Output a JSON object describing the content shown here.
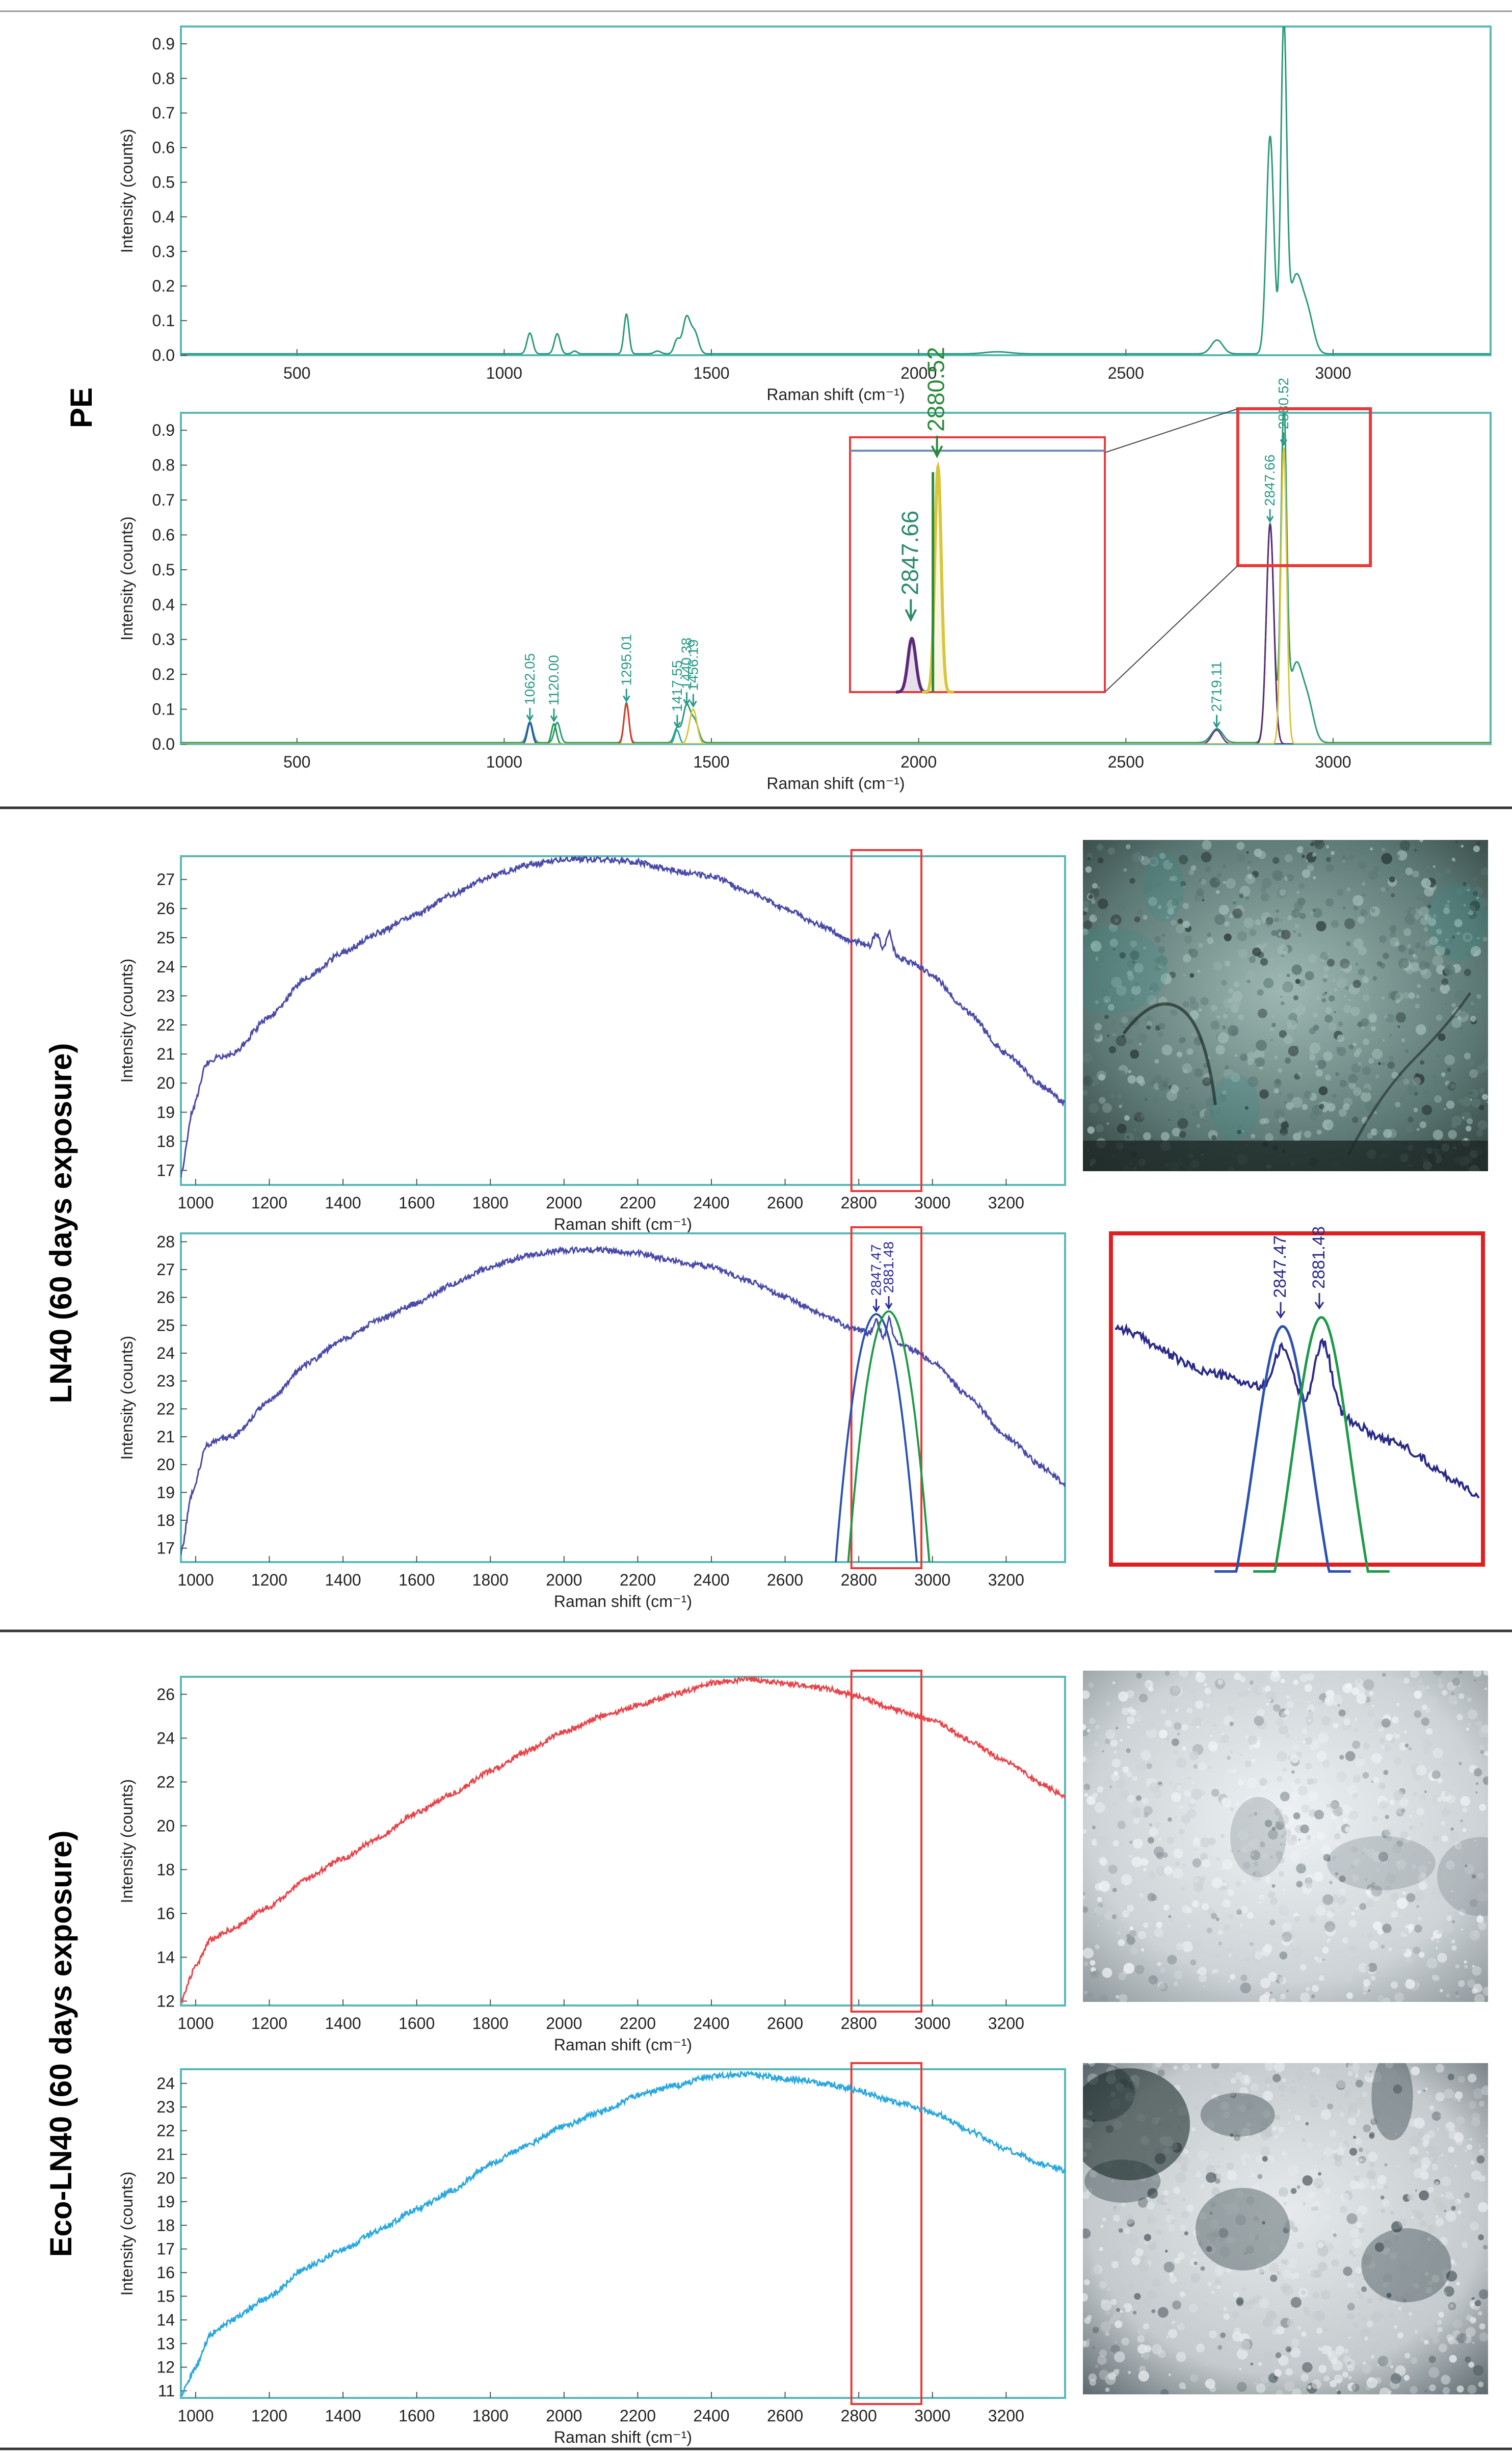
{
  "colors": {
    "frame": "#5ab8b8",
    "highlight": "#e83a3a",
    "pe_spectrum": "#2a9a78",
    "peak_blue": "#2c52b0",
    "peak_green": "#1e9a48",
    "peak_red": "#e03b2b",
    "peak_yellow": "#d8c63c",
    "peak_purple": "#5e2a78",
    "ln40": "#4a4aa8",
    "eco_red": "#e8444a",
    "eco_cyan": "#2aa8de"
  },
  "sections": {
    "pe": "PE",
    "ln40": "LN40 (60 days exposure)",
    "eco": "Eco-LN40 (60 days exposure)"
  },
  "axes": {
    "ylabel": "Intensity (counts)",
    "xlabel": "Raman shift (cm⁻¹)"
  },
  "chart_data": [
    {
      "id": "pe_top",
      "type": "line",
      "xlim": [
        220,
        3380
      ],
      "ylim": [
        0,
        0.95
      ],
      "xticks": [
        500,
        1000,
        1500,
        2000,
        2500,
        3000
      ],
      "yticks": [
        0.0,
        0.1,
        0.2,
        0.3,
        0.4,
        0.5,
        0.6,
        0.7,
        0.8,
        0.9
      ],
      "tick_decimals": 1,
      "xlabel": "Raman shift (cm⁻¹)",
      "ylabel": "Intensity (counts)",
      "grid": false,
      "series": [
        {
          "color": "#2a9a78",
          "baseline": 0.004,
          "peaks": [
            [
              1062,
              0.06,
              7
            ],
            [
              1128,
              0.058,
              7
            ],
            [
              1170,
              0.008,
              6
            ],
            [
              1295,
              0.115,
              6
            ],
            [
              1370,
              0.008,
              8
            ],
            [
              1417,
              0.04,
              7
            ],
            [
              1440,
              0.105,
              9
            ],
            [
              1460,
              0.06,
              9
            ],
            [
              2190,
              0.006,
              30
            ],
            [
              2720,
              0.04,
              14
            ],
            [
              2848,
              0.63,
              9
            ],
            [
              2881,
              0.93,
              7
            ],
            [
              2910,
              0.22,
              16
            ],
            [
              2940,
              0.1,
              14
            ]
          ]
        }
      ]
    },
    {
      "id": "pe_bottom",
      "type": "line",
      "xlim": [
        220,
        3380
      ],
      "ylim": [
        0,
        0.95
      ],
      "xticks": [
        500,
        1000,
        1500,
        2000,
        2500,
        3000
      ],
      "yticks": [
        0.0,
        0.1,
        0.2,
        0.3,
        0.4,
        0.5,
        0.6,
        0.7,
        0.8,
        0.9
      ],
      "tick_decimals": 1,
      "xlabel": "Raman shift (cm⁻¹)",
      "ylabel": "Intensity (counts)",
      "grid": false,
      "series": [
        {
          "color": "#2a9a78",
          "baseline": 0.004,
          "peaks": [
            [
              1062,
              0.06,
              7
            ],
            [
              1128,
              0.058,
              7
            ],
            [
              1295,
              0.115,
              6
            ],
            [
              1417,
              0.04,
              7
            ],
            [
              1440,
              0.105,
              9
            ],
            [
              1460,
              0.06,
              9
            ],
            [
              2720,
              0.04,
              14
            ],
            [
              2848,
              0.63,
              9
            ],
            [
              2881,
              0.93,
              7
            ],
            [
              2910,
              0.22,
              16
            ],
            [
              2940,
              0.1,
              14
            ]
          ]
        },
        {
          "color": "#2c52b0",
          "baseline": 0,
          "peaks": [
            [
              1062,
              0.06,
              6
            ]
          ]
        },
        {
          "color": "#1e9a48",
          "baseline": 0,
          "peaks": [
            [
              1120,
              0.058,
              6
            ]
          ]
        },
        {
          "color": "#e03b2b",
          "baseline": 0,
          "peaks": [
            [
              1295,
              0.115,
              6
            ]
          ]
        },
        {
          "color": "#2aa8a8",
          "baseline": 0,
          "peaks": [
            [
              1417,
              0.04,
              6
            ]
          ]
        },
        {
          "color": "#d8c63c",
          "baseline": 0,
          "peaks": [
            [
              1456,
              0.1,
              9
            ]
          ]
        },
        {
          "color": "#6a3a90",
          "baseline": 0,
          "peaks": [
            [
              2719,
              0.04,
              12
            ]
          ]
        },
        {
          "color": "#5e2a78",
          "baseline": 0,
          "peaks": [
            [
              2848,
              0.63,
              9
            ]
          ]
        },
        {
          "color": "#d8c63c",
          "baseline": 0,
          "peaks": [
            [
              2881,
              0.85,
              7
            ]
          ]
        }
      ],
      "annotations": [
        {
          "x": 1062.05,
          "y": 0.06,
          "text": "1062.05",
          "color": "#2a9a88"
        },
        {
          "x": 1120.0,
          "y": 0.058,
          "text": "1120.00",
          "color": "#2a9a88"
        },
        {
          "x": 1295.01,
          "y": 0.115,
          "text": "1295.01",
          "color": "#2a9a88"
        },
        {
          "x": 1417.55,
          "y": 0.04,
          "text": "1417.55",
          "color": "#2a9a88"
        },
        {
          "x": 1440.38,
          "y": 0.105,
          "text": "1440.38",
          "color": "#2a9a88"
        },
        {
          "x": 1456.19,
          "y": 0.1,
          "text": "1456.19",
          "color": "#2a9a88"
        },
        {
          "x": 2719.11,
          "y": 0.04,
          "text": "2719.11",
          "color": "#2a9a88"
        },
        {
          "x": 2847.66,
          "y": 0.63,
          "text": "2847.66",
          "color": "#2a9a88"
        },
        {
          "x": 2880.52,
          "y": 0.85,
          "text": "2880.52",
          "color": "#2a9a88"
        }
      ],
      "zoom_region": {
        "x": [
          2770,
          3090
        ],
        "y": [
          0.5,
          0.95
        ]
      },
      "inset": {
        "xlim": [
          2770,
          3090
        ],
        "ylim": [
          0.0,
          0.95
        ],
        "line_y": 0.9,
        "annotations": [
          {
            "x": 2847.66,
            "text": "2847.66"
          },
          {
            "x": 2880.52,
            "text": "2880.52"
          }
        ]
      }
    },
    {
      "id": "ln40_top",
      "type": "line",
      "xlim": [
        960,
        3360
      ],
      "ylim": [
        16.5,
        27.8
      ],
      "xticks": [
        1000,
        1200,
        1400,
        1600,
        1800,
        2000,
        2200,
        2400,
        2600,
        2800,
        3000,
        3200
      ],
      "yticks": [
        17,
        18,
        19,
        20,
        21,
        22,
        23,
        24,
        25,
        26,
        27
      ],
      "tick_decimals": 0,
      "xlabel": "Raman shift (cm⁻¹)",
      "ylabel": "Intensity (counts)",
      "grid": false,
      "highlight_x": [
        2780,
        2970
      ],
      "series": [
        {
          "color": "#4a4aa8",
          "knots": [
            [
              960,
              16.8
            ],
            [
              990,
              19.0
            ],
            [
              1030,
              20.7
            ],
            [
              1060,
              20.9
            ],
            [
              1100,
              21.0
            ],
            [
              1200,
              22.3
            ],
            [
              1300,
              23.6
            ],
            [
              1400,
              24.5
            ],
            [
              1500,
              25.2
            ],
            [
              1600,
              25.8
            ],
            [
              1700,
              26.5
            ],
            [
              1800,
              27.1
            ],
            [
              1900,
              27.5
            ],
            [
              2000,
              27.7
            ],
            [
              2100,
              27.7
            ],
            [
              2200,
              27.6
            ],
            [
              2300,
              27.3
            ],
            [
              2400,
              27.1
            ],
            [
              2500,
              26.6
            ],
            [
              2600,
              26.0
            ],
            [
              2700,
              25.4
            ],
            [
              2780,
              24.9
            ],
            [
              2880,
              24.5
            ],
            [
              2950,
              24.1
            ],
            [
              3000,
              23.7
            ],
            [
              3100,
              22.4
            ],
            [
              3200,
              21.0
            ],
            [
              3300,
              19.9
            ],
            [
              3360,
              19.3
            ]
          ],
          "peaks": [
            [
              2848,
              0.55,
              8
            ],
            [
              2883,
              0.75,
              7
            ]
          ],
          "noise": 0.1
        }
      ]
    },
    {
      "id": "ln40_bottom",
      "type": "line",
      "xlim": [
        960,
        3360
      ],
      "ylim": [
        16.5,
        28.3
      ],
      "xticks": [
        1000,
        1200,
        1400,
        1600,
        1800,
        2000,
        2200,
        2400,
        2600,
        2800,
        3000,
        3200
      ],
      "yticks": [
        17,
        18,
        19,
        20,
        21,
        22,
        23,
        24,
        25,
        26,
        27,
        28
      ],
      "tick_decimals": 0,
      "xlabel": "Raman shift (cm⁻¹)",
      "ylabel": "Intensity (counts)",
      "grid": false,
      "highlight_x": [
        2780,
        2970
      ],
      "series": [
        {
          "color": "#4a4aa8",
          "knots": [
            [
              960,
              16.8
            ],
            [
              990,
              19.0
            ],
            [
              1030,
              20.7
            ],
            [
              1060,
              20.9
            ],
            [
              1100,
              21.0
            ],
            [
              1200,
              22.3
            ],
            [
              1300,
              23.6
            ],
            [
              1400,
              24.5
            ],
            [
              1500,
              25.2
            ],
            [
              1600,
              25.8
            ],
            [
              1700,
              26.5
            ],
            [
              1800,
              27.1
            ],
            [
              1900,
              27.5
            ],
            [
              2000,
              27.7
            ],
            [
              2100,
              27.7
            ],
            [
              2200,
              27.6
            ],
            [
              2300,
              27.3
            ],
            [
              2400,
              27.1
            ],
            [
              2500,
              26.6
            ],
            [
              2600,
              26.0
            ],
            [
              2700,
              25.4
            ],
            [
              2780,
              24.9
            ],
            [
              2880,
              24.5
            ],
            [
              2950,
              24.1
            ],
            [
              3000,
              23.7
            ],
            [
              3100,
              22.4
            ],
            [
              3200,
              21.0
            ],
            [
              3300,
              19.9
            ],
            [
              3360,
              19.3
            ]
          ],
          "peaks": [
            [
              2848,
              0.55,
              8
            ],
            [
              2883,
              0.75,
              7
            ]
          ],
          "noise": 0.1
        },
        {
          "color": "#2c52b0",
          "fit_center": 2847.47,
          "fit_peak": 25.4,
          "fit_width": 60
        },
        {
          "color": "#1e9a48",
          "fit_center": 2881.48,
          "fit_peak": 25.5,
          "fit_width": 60
        }
      ],
      "annotations": [
        {
          "x": 2847.47,
          "y": 25.4,
          "text": "2847.47"
        },
        {
          "x": 2881.48,
          "y": 25.5,
          "text": "2881.48"
        }
      ],
      "inset": {
        "annotations": [
          {
            "text": "2847.47"
          },
          {
            "text": "2881.48"
          }
        ]
      }
    },
    {
      "id": "eco_top",
      "type": "line",
      "xlim": [
        960,
        3360
      ],
      "ylim": [
        11.8,
        26.8
      ],
      "xticks": [
        1000,
        1200,
        1400,
        1600,
        1800,
        2000,
        2200,
        2400,
        2600,
        2800,
        3000,
        3200
      ],
      "yticks": [
        12,
        14,
        16,
        18,
        20,
        22,
        24,
        26
      ],
      "tick_decimals": 0,
      "xlabel": "Raman shift (cm⁻¹)",
      "ylabel": "Intensity (counts)",
      "grid": false,
      "highlight_x": [
        2780,
        2970
      ],
      "series": [
        {
          "color": "#e8444a",
          "knots": [
            [
              960,
              12.0
            ],
            [
              1000,
              13.6
            ],
            [
              1040,
              14.8
            ],
            [
              1100,
              15.3
            ],
            [
              1200,
              16.3
            ],
            [
              1300,
              17.6
            ],
            [
              1400,
              18.5
            ],
            [
              1500,
              19.5
            ],
            [
              1600,
              20.6
            ],
            [
              1700,
              21.5
            ],
            [
              1800,
              22.5
            ],
            [
              1900,
              23.4
            ],
            [
              2000,
              24.3
            ],
            [
              2100,
              25.0
            ],
            [
              2200,
              25.5
            ],
            [
              2300,
              26.0
            ],
            [
              2400,
              26.5
            ],
            [
              2500,
              26.7
            ],
            [
              2600,
              26.5
            ],
            [
              2700,
              26.3
            ],
            [
              2800,
              25.9
            ],
            [
              2900,
              25.3
            ],
            [
              3000,
              24.8
            ],
            [
              3100,
              23.9
            ],
            [
              3200,
              22.9
            ],
            [
              3300,
              21.9
            ],
            [
              3360,
              21.3
            ]
          ],
          "noise": 0.12
        }
      ]
    },
    {
      "id": "eco_bottom",
      "type": "line",
      "xlim": [
        960,
        3360
      ],
      "ylim": [
        10.7,
        24.6
      ],
      "xticks": [
        1000,
        1200,
        1400,
        1600,
        1800,
        2000,
        2200,
        2400,
        2600,
        2800,
        3000,
        3200
      ],
      "yticks": [
        11,
        12,
        13,
        14,
        15,
        16,
        17,
        18,
        19,
        20,
        21,
        22,
        23,
        24
      ],
      "tick_decimals": 0,
      "xlabel": "Raman shift (cm⁻¹)",
      "ylabel": "Intensity (counts)",
      "grid": false,
      "highlight_x": [
        2780,
        2970
      ],
      "series": [
        {
          "color": "#2aa8de",
          "knots": [
            [
              960,
              10.8
            ],
            [
              1000,
              12.0
            ],
            [
              1040,
              13.4
            ],
            [
              1100,
              14.0
            ],
            [
              1200,
              15.0
            ],
            [
              1300,
              16.2
            ],
            [
              1400,
              17.0
            ],
            [
              1500,
              17.8
            ],
            [
              1600,
              18.7
            ],
            [
              1700,
              19.5
            ],
            [
              1800,
              20.6
            ],
            [
              1900,
              21.4
            ],
            [
              2000,
              22.2
            ],
            [
              2100,
              22.8
            ],
            [
              2200,
              23.5
            ],
            [
              2300,
              23.9
            ],
            [
              2400,
              24.3
            ],
            [
              2500,
              24.4
            ],
            [
              2600,
              24.2
            ],
            [
              2700,
              24.0
            ],
            [
              2800,
              23.7
            ],
            [
              2900,
              23.2
            ],
            [
              3000,
              22.8
            ],
            [
              3100,
              22.0
            ],
            [
              3200,
              21.2
            ],
            [
              3300,
              20.6
            ],
            [
              3360,
              20.3
            ]
          ],
          "noise": 0.12
        }
      ]
    }
  ],
  "photos": [
    {
      "id": "ln40_photo",
      "tone": "teal",
      "base": "#5c7874",
      "light": "#9fb8b3",
      "dark": "#2e3d3b",
      "accent": "#2f8e86"
    },
    {
      "id": "eco_photo1",
      "tone": "white",
      "base": "#cdd3d6",
      "light": "#eef2f4",
      "dark": "#8b9599",
      "accent": "#3c4d56"
    },
    {
      "id": "eco_photo2",
      "tone": "white-dark",
      "base": "#c4cacd",
      "light": "#e6eaec",
      "dark": "#5a666b",
      "accent": "#1a2a30"
    }
  ]
}
